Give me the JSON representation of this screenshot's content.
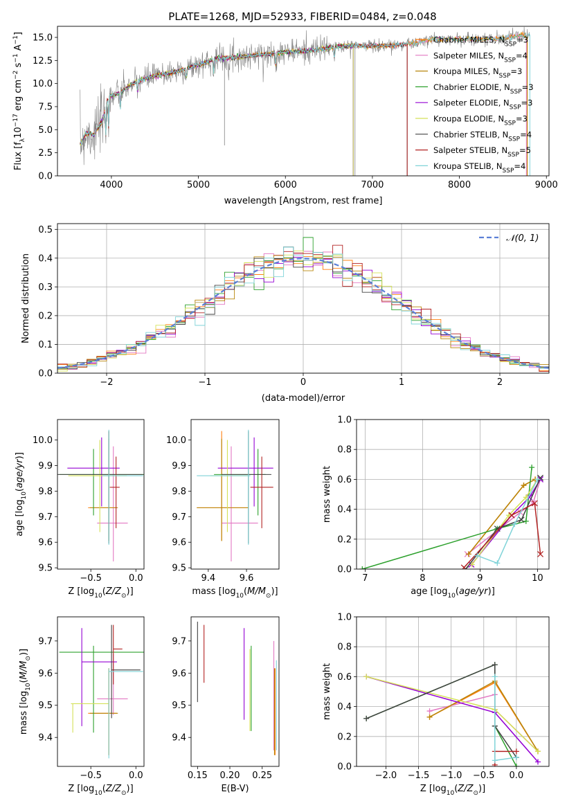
{
  "figure": {
    "title": "PLATE=1268, MJD=52933, FIBERID=0484, z=0.048"
  },
  "colors": {
    "Chabrier MILES": "#ff7f0e",
    "Salpeter MILES": "#e377c2",
    "Kroupa MILES": "#b8860b",
    "Chabrier ELODIE": "#2ca02c",
    "Salpeter ELODIE": "#9400d3",
    "Kroupa ELODIE": "#d4e157",
    "Chabrier STELIB": "#404040",
    "Salpeter STELIB": "#b22222",
    "Kroupa STELIB": "#7fd3d8",
    "data": "#808080",
    "normal": "#5b7fd6"
  },
  "chart_data": [
    {
      "id": "spectrum",
      "type": "line",
      "title": "PLATE=1268, MJD=52933, FIBERID=0484, z=0.048",
      "xlabel": "wavelength [Angstrom, rest frame]",
      "ylabel": "Flux [fλ 10⁻¹⁷ erg cm⁻² s⁻¹ A⁻¹]",
      "xlim": [
        3380,
        9030
      ],
      "ylim": [
        0,
        16.2
      ],
      "xticks": [
        4000,
        5000,
        6000,
        7000,
        8000,
        9000
      ],
      "yticks": [
        0.0,
        2.5,
        5.0,
        7.5,
        10.0,
        12.5,
        15.0
      ],
      "legend_position": "upper-right",
      "data_anchor_x": [
        3650,
        3700,
        3800,
        3900,
        3960,
        4100,
        4300,
        4500,
        4800,
        5000,
        5200,
        5500,
        5800,
        6000,
        6300,
        6600,
        6800,
        7000,
        7200,
        7400,
        7500,
        7700,
        7900,
        8100,
        8300,
        8500,
        8700,
        8810
      ],
      "data_anchor_y": [
        3.5,
        4.6,
        4.5,
        6.0,
        8.5,
        9.0,
        10.3,
        10.8,
        11.4,
        12.0,
        12.7,
        12.9,
        13.2,
        13.4,
        13.6,
        14.0,
        14.1,
        14.1,
        14.1,
        14.3,
        14.4,
        14.8,
        14.8,
        14.8,
        14.8,
        14.9,
        15.2,
        15.3
      ],
      "series": [
        {
          "name": "Chabrier MILES",
          "nssp": "3",
          "end_x": 8780
        },
        {
          "name": "Salpeter MILES",
          "nssp": "4",
          "end_x": 8770
        },
        {
          "name": "Kroupa MILES",
          "nssp": "3",
          "end_x": 8780
        },
        {
          "name": "Chabrier ELODIE",
          "nssp": "3",
          "end_x": 6780
        },
        {
          "name": "Salpeter ELODIE",
          "nssp": "3",
          "end_x": 6780
        },
        {
          "name": "Kroupa ELODIE",
          "nssp": "3",
          "end_x": 6780
        },
        {
          "name": "Chabrier STELIB",
          "nssp": "4",
          "end_x": 7400
        },
        {
          "name": "Salpeter STELIB",
          "nssp": "5",
          "end_x": 7400
        },
        {
          "name": "Kroupa STELIB",
          "nssp": "4",
          "end_x": 8810
        }
      ]
    },
    {
      "id": "residuals",
      "type": "step",
      "xlabel": "(data-model)/error",
      "ylabel": "Normed distribution",
      "xlim": [
        -2.5,
        2.5
      ],
      "ylim": [
        0,
        0.52
      ],
      "xticks": [
        -2,
        -1,
        0,
        1,
        2
      ],
      "yticks": [
        0.0,
        0.1,
        0.2,
        0.3,
        0.4,
        0.5
      ],
      "bin_width": 0.1,
      "normal_label": "N(0,1)",
      "legend_position": "upper-right"
    },
    {
      "id": "z-vs-age",
      "type": "errorbar",
      "xlabel": "Z [log10(Z/Z⊙)]",
      "ylabel": "age  [log10(age/yr)]",
      "xlim": [
        -0.87,
        0.09
      ],
      "ylim": [
        9.495,
        10.08
      ],
      "xticks": [
        -0.5,
        0.0
      ],
      "yticks": [
        9.5,
        9.6,
        9.7,
        9.8,
        9.9,
        10.0
      ],
      "points": [
        {
          "series": "Chabrier MILES",
          "x": -0.3,
          "xerr": [
            0.23,
            0.09
          ],
          "y": 9.735,
          "yerr": [
            0.13,
            0.3
          ]
        },
        {
          "series": "Salpeter MILES",
          "x": -0.25,
          "xerr": [
            0.18,
            0.16
          ],
          "y": 9.675,
          "yerr": [
            0.15,
            0.3
          ]
        },
        {
          "series": "Kroupa MILES",
          "x": -0.3,
          "xerr": [
            0.21,
            0.1
          ],
          "y": 9.735,
          "yerr": [
            0.13,
            0.27
          ]
        },
        {
          "series": "Chabrier ELODIE",
          "x": -0.47,
          "xerr": [
            0.38,
            0.56
          ],
          "y": 9.865,
          "yerr": [
            0.16,
            0.1
          ]
        },
        {
          "series": "Salpeter ELODIE",
          "x": -0.38,
          "xerr": [
            0.38,
            0.2
          ],
          "y": 9.89,
          "yerr": [
            0.15,
            0.12
          ]
        },
        {
          "series": "Kroupa ELODIE",
          "x": -0.4,
          "xerr": [
            0.35,
            0.3
          ],
          "y": 9.86,
          "yerr": [
            0.22,
            0.14
          ]
        },
        {
          "series": "Chabrier STELIB",
          "x": -0.3,
          "xerr": [
            0.58,
            0.38
          ],
          "y": 9.865,
          "yerr": [
            0.27,
            0.17
          ]
        },
        {
          "series": "Salpeter STELIB",
          "x": -0.22,
          "xerr": [
            0.07,
            0.04
          ],
          "y": 9.815,
          "yerr": [
            0.16,
            0.12
          ]
        },
        {
          "series": "Kroupa STELIB",
          "x": -0.3,
          "xerr": [
            0.07,
            0.38
          ],
          "y": 9.86,
          "yerr": [
            0.27,
            0.18
          ]
        }
      ]
    },
    {
      "id": "mass-vs-age",
      "type": "errorbar",
      "xlabel": "mass [log10(M/M⊙)]",
      "ylabel": "",
      "xlim": [
        9.31,
        9.77
      ],
      "ylim": [
        9.495,
        10.08
      ],
      "xticks": [
        9.4,
        9.6
      ],
      "yticks": [
        9.5,
        9.6,
        9.7,
        9.8,
        9.9,
        10.0
      ],
      "points": [
        {
          "series": "Chabrier MILES",
          "x": 9.47,
          "xerr": [
            0.13,
            0.14
          ],
          "y": 9.735,
          "yerr": [
            0.13,
            0.3
          ]
        },
        {
          "series": "Salpeter MILES",
          "x": 9.52,
          "xerr": [
            0.05,
            0.14
          ],
          "y": 9.675,
          "yerr": [
            0.15,
            0.3
          ]
        },
        {
          "series": "Kroupa MILES",
          "x": 9.47,
          "xerr": [
            0.13,
            0.14
          ],
          "y": 9.735,
          "yerr": [
            0.13,
            0.27
          ]
        },
        {
          "series": "Chabrier ELODIE",
          "x": 9.66,
          "xerr": [
            0.23,
            0.04
          ],
          "y": 9.865,
          "yerr": [
            0.16,
            0.1
          ]
        },
        {
          "series": "Salpeter ELODIE",
          "x": 9.64,
          "xerr": [
            0.19,
            0.1
          ],
          "y": 9.89,
          "yerr": [
            0.15,
            0.12
          ]
        },
        {
          "series": "Kroupa ELODIE",
          "x": 9.5,
          "xerr": [
            0.09,
            0.11
          ],
          "y": 9.86,
          "yerr": [
            0.22,
            0.14
          ]
        },
        {
          "series": "Chabrier STELIB",
          "x": 9.61,
          "xerr": [
            0.14,
            0.12
          ],
          "y": 9.865,
          "yerr": [
            0.27,
            0.17
          ]
        },
        {
          "series": "Salpeter STELIB",
          "x": 9.68,
          "xerr": [
            0.06,
            0.06
          ],
          "y": 9.815,
          "yerr": [
            0.16,
            0.12
          ]
        },
        {
          "series": "Kroupa STELIB",
          "x": 9.61,
          "xerr": [
            0.27,
            0.01
          ],
          "y": 9.86,
          "yerr": [
            0.27,
            0.18
          ]
        }
      ]
    },
    {
      "id": "age-vs-weight",
      "type": "line-marker",
      "xlabel": "age  [log10(age/yr)]",
      "ylabel": "mass weight",
      "xlim": [
        6.85,
        10.2
      ],
      "ylim": [
        0,
        1.0
      ],
      "xticks": [
        7,
        8,
        9,
        10
      ],
      "yticks": [
        0.0,
        0.2,
        0.4,
        0.6,
        0.8,
        1.0
      ],
      "series": [
        {
          "name": "Chabrier MILES",
          "marker": "+",
          "x": [
            8.8,
            9.76,
            9.96
          ],
          "y": [
            0.1,
            0.56,
            0.6
          ]
        },
        {
          "name": "Salpeter MILES",
          "marker": "x",
          "x": [
            8.78,
            9.7,
            9.92,
            10.05
          ],
          "y": [
            0.1,
            0.38,
            0.44,
            0.6
          ]
        },
        {
          "name": "Kroupa MILES",
          "marker": "+",
          "x": [
            8.8,
            9.76,
            9.96
          ],
          "y": [
            0.1,
            0.56,
            0.6
          ]
        },
        {
          "name": "Chabrier ELODIE",
          "marker": "+",
          "x": [
            6.95,
            9.3,
            9.8,
            9.9
          ],
          "y": [
            0.0,
            0.27,
            0.32,
            0.68
          ]
        },
        {
          "name": "Salpeter ELODIE",
          "marker": "x",
          "x": [
            8.85,
            9.55,
            9.86,
            10.05
          ],
          "y": [
            0.03,
            0.36,
            0.48,
            0.6
          ]
        },
        {
          "name": "Kroupa ELODIE",
          "marker": "+",
          "x": [
            8.86,
            9.5,
            9.8,
            10.0
          ],
          "y": [
            0.03,
            0.36,
            0.48,
            0.6
          ]
        },
        {
          "name": "Chabrier STELIB",
          "marker": "x",
          "x": [
            8.75,
            9.3,
            9.72,
            10.05
          ],
          "y": [
            0.0,
            0.27,
            0.33,
            0.61
          ]
        },
        {
          "name": "Salpeter STELIB",
          "marker": "x",
          "x": [
            8.72,
            9.55,
            9.95,
            10.05
          ],
          "y": [
            0.01,
            0.36,
            0.44,
            0.1
          ]
        },
        {
          "name": "Kroupa STELIB",
          "marker": "+",
          "x": [
            8.95,
            9.3,
            9.6,
            10.0
          ],
          "y": [
            0.09,
            0.04,
            0.3,
            0.6
          ]
        }
      ]
    },
    {
      "id": "z-vs-mass",
      "type": "errorbar",
      "xlabel": "Z [log10(Z/Z⊙)]",
      "ylabel": "mass [log10(M/M⊙)]",
      "xlim": [
        -0.87,
        0.09
      ],
      "ylim": [
        9.31,
        9.775
      ],
      "xticks": [
        -0.5,
        0.0
      ],
      "yticks": [
        9.4,
        9.5,
        9.6,
        9.7
      ],
      "points": [
        {
          "series": "Chabrier MILES",
          "x": -0.3,
          "xerr": [
            0.23,
            0.09
          ],
          "y": 9.475,
          "yerr": [
            0.13,
            0.14
          ]
        },
        {
          "series": "Salpeter MILES",
          "x": -0.25,
          "xerr": [
            0.18,
            0.16
          ],
          "y": 9.52,
          "yerr": [
            0.05,
            0.14
          ]
        },
        {
          "series": "Kroupa MILES",
          "x": -0.3,
          "xerr": [
            0.21,
            0.1
          ],
          "y": 9.475,
          "yerr": [
            0.13,
            0.14
          ]
        },
        {
          "series": "Chabrier ELODIE",
          "x": -0.47,
          "xerr": [
            0.38,
            0.56
          ],
          "y": 9.665,
          "yerr": [
            0.25,
            0.02
          ]
        },
        {
          "series": "Salpeter ELODIE",
          "x": -0.6,
          "xerr": [
            0.0,
            0.39
          ],
          "y": 9.635,
          "yerr": [
            0.2,
            0.105
          ]
        },
        {
          "series": "Kroupa ELODIE",
          "x": -0.7,
          "xerr": [
            0.02,
            0.4
          ],
          "y": 9.505,
          "yerr": [
            0.09,
            0.0
          ]
        },
        {
          "series": "Chabrier STELIB",
          "x": -0.27,
          "xerr": [
            0.0,
            0.32
          ],
          "y": 9.61,
          "yerr": [
            0.15,
            0.14
          ]
        },
        {
          "series": "Salpeter STELIB",
          "x": -0.25,
          "xerr": [
            0.0,
            0.1
          ],
          "y": 9.675,
          "yerr": [
            0.11,
            0.075
          ]
        },
        {
          "series": "Kroupa STELIB",
          "x": -0.3,
          "xerr": [
            0.0,
            0.38
          ],
          "y": 9.605,
          "yerr": [
            0.27,
            0.01
          ]
        }
      ]
    },
    {
      "id": "ebv-vs-mass",
      "type": "errorbar",
      "xlabel": "E(B-V)",
      "ylabel": "",
      "xlim": [
        0.14,
        0.276
      ],
      "ylim": [
        9.31,
        9.775
      ],
      "xticks": [
        0.15,
        0.2,
        0.25
      ],
      "yticks": [
        9.4,
        9.5,
        9.6,
        9.7
      ],
      "points": [
        {
          "series": "Chabrier MILES",
          "x": 0.27,
          "xerr": [
            0,
            0
          ],
          "y": 9.475,
          "yerr": [
            0.13,
            0.14
          ]
        },
        {
          "series": "Salpeter MILES",
          "x": 0.268,
          "xerr": [
            0,
            0
          ],
          "y": 9.52,
          "yerr": [
            0.16,
            0.18
          ]
        },
        {
          "series": "Kroupa MILES",
          "x": 0.269,
          "xerr": [
            0,
            0
          ],
          "y": 9.475,
          "yerr": [
            0.13,
            0.14
          ]
        },
        {
          "series": "Chabrier ELODIE",
          "x": 0.233,
          "xerr": [
            0,
            0
          ],
          "y": 9.55,
          "yerr": [
            0.13,
            0.135
          ]
        },
        {
          "series": "Salpeter ELODIE",
          "x": 0.222,
          "xerr": [
            0,
            0
          ],
          "y": 9.6,
          "yerr": [
            0.145,
            0.14
          ]
        },
        {
          "series": "Kroupa ELODIE",
          "x": 0.231,
          "xerr": [
            0,
            0
          ],
          "y": 9.55,
          "yerr": [
            0.13,
            0.125
          ]
        },
        {
          "series": "Chabrier STELIB",
          "x": 0.15,
          "xerr": [
            0,
            0
          ],
          "y": 9.61,
          "yerr": [
            0.1,
            0.15
          ]
        },
        {
          "series": "Salpeter STELIB",
          "x": 0.16,
          "xerr": [
            0,
            0
          ],
          "y": 9.66,
          "yerr": [
            0.09,
            0.09
          ]
        },
        {
          "series": "Kroupa STELIB",
          "x": 0.272,
          "xerr": [
            0,
            0
          ],
          "y": 9.5,
          "yerr": [
            0.14,
            0.14
          ]
        }
      ]
    },
    {
      "id": "z-vs-weight",
      "type": "line-marker",
      "xlabel": "Z [log10(Z/Z⊙)]",
      "ylabel": "mass weight",
      "xlim": [
        -2.45,
        0.5
      ],
      "ylim": [
        0,
        1.0
      ],
      "xticks": [
        -2.0,
        -1.5,
        -1.0,
        -0.5,
        0.0
      ],
      "yticks": [
        0.0,
        0.2,
        0.4,
        0.6,
        0.8,
        1.0
      ],
      "series": [
        {
          "name": "Chabrier MILES",
          "marker": "+",
          "x": [
            -1.33,
            -0.33,
            0.33
          ],
          "y": [
            0.33,
            0.56,
            0.1
          ]
        },
        {
          "name": "Salpeter MILES",
          "marker": "+",
          "x": [
            -1.33,
            -0.33,
            -0.33,
            0.33
          ],
          "y": [
            0.37,
            0.48,
            0.38,
            0.1
          ]
        },
        {
          "name": "Kroupa MILES",
          "marker": "+",
          "x": [
            -1.33,
            -0.33,
            0.33
          ],
          "y": [
            0.33,
            0.57,
            0.1
          ]
        },
        {
          "name": "Chabrier ELODIE",
          "marker": "+",
          "x": [
            -2.3,
            -0.33,
            -0.33,
            0.0
          ],
          "y": [
            0.32,
            0.68,
            0.27,
            0.0
          ]
        },
        {
          "name": "Salpeter ELODIE",
          "marker": "+",
          "x": [
            -2.3,
            -0.33,
            0.33
          ],
          "y": [
            0.6,
            0.36,
            0.03
          ]
        },
        {
          "name": "Kroupa ELODIE",
          "marker": "+",
          "x": [
            -2.3,
            -0.33,
            0.33
          ],
          "y": [
            0.6,
            0.38,
            0.1
          ]
        },
        {
          "name": "Chabrier STELIB",
          "marker": "+",
          "x": [
            -2.3,
            -0.33,
            -0.33,
            0.0
          ],
          "y": [
            0.32,
            0.68,
            0.27,
            0.06
          ]
        },
        {
          "name": "Salpeter STELIB",
          "marker": "+",
          "x": [
            -0.33,
            -0.33,
            0.0
          ],
          "y": [
            0.01,
            0.1,
            0.1
          ]
        },
        {
          "name": "Kroupa STELIB",
          "marker": "+",
          "x": [
            -0.33,
            -0.33,
            0.0
          ],
          "y": [
            0.6,
            0.04,
            0.06
          ]
        }
      ]
    }
  ]
}
